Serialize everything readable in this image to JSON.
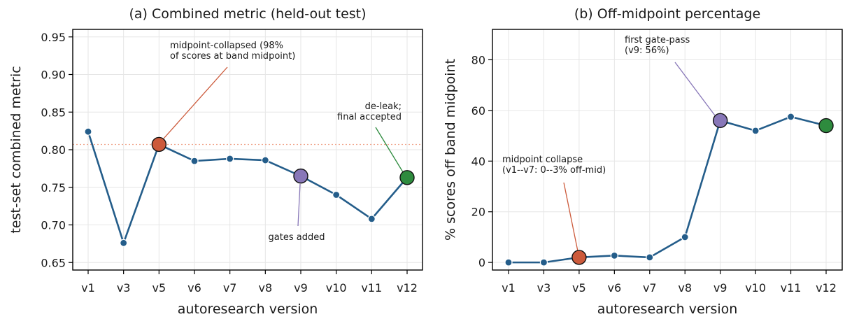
{
  "chart_data": [
    {
      "type": "line",
      "title": "(a) Combined metric (held-out test)",
      "xlabel": "autoresearch version",
      "ylabel": "test-set combined metric",
      "categories": [
        "v1",
        "v3",
        "v5",
        "v6",
        "v7",
        "v8",
        "v9",
        "v10",
        "v11",
        "v12"
      ],
      "values": [
        0.824,
        0.676,
        0.807,
        0.785,
        0.788,
        0.786,
        0.765,
        0.74,
        0.708,
        0.763
      ],
      "ylim": [
        0.64,
        0.96
      ],
      "yticks": [
        0.65,
        0.7,
        0.75,
        0.8,
        0.85,
        0.9,
        0.95
      ],
      "ytick_labels": [
        "0.65",
        "0.70",
        "0.75",
        "0.80",
        "0.85",
        "0.90",
        "0.95"
      ],
      "reference_line": 0.807,
      "grid": true,
      "line_color": "#245d8a",
      "highlights": [
        {
          "category": "v5",
          "color": "#cc5a3b"
        },
        {
          "category": "v9",
          "color": "#8877b8"
        },
        {
          "category": "v12",
          "color": "#2e8b3e"
        }
      ],
      "annotations": [
        {
          "lines": [
            "midpoint-collapsed (98%",
            "of scores at band midpoint)"
          ],
          "target": "v5",
          "align": "start",
          "arrow_color": "#cc5a3b"
        },
        {
          "lines": [
            "gates added"
          ],
          "target": "v9",
          "align": "middle",
          "arrow_color": "#8877b8"
        },
        {
          "lines": [
            "de-leak;",
            "final accepted"
          ],
          "target": "v12",
          "align": "end",
          "arrow_color": "#2e8b3e"
        }
      ]
    },
    {
      "type": "line",
      "title": "(b) Off-midpoint percentage",
      "xlabel": "autoresearch version",
      "ylabel": "% scores off band midpoint",
      "categories": [
        "v1",
        "v3",
        "v5",
        "v6",
        "v7",
        "v8",
        "v9",
        "v10",
        "v11",
        "v12"
      ],
      "values": [
        0,
        0,
        2,
        2.7,
        2,
        10,
        56,
        52,
        57.5,
        54
      ],
      "ylim": [
        -3,
        92
      ],
      "yticks": [
        0,
        20,
        40,
        60,
        80
      ],
      "ytick_labels": [
        "0",
        "20",
        "40",
        "60",
        "80"
      ],
      "grid": true,
      "line_color": "#245d8a",
      "highlights": [
        {
          "category": "v5",
          "color": "#cc5a3b"
        },
        {
          "category": "v9",
          "color": "#8877b8"
        },
        {
          "category": "v12",
          "color": "#2e8b3e"
        }
      ],
      "annotations": [
        {
          "lines": [
            "midpoint collapse",
            "(v1--v7: 0--3% off-mid)"
          ],
          "target": "v5",
          "align": "start",
          "arrow_color": "#cc5a3b"
        },
        {
          "lines": [
            "first gate-pass",
            "(v9: 56%)"
          ],
          "target": "v9",
          "align": "start",
          "arrow_color": "#8877b8"
        }
      ]
    }
  ]
}
